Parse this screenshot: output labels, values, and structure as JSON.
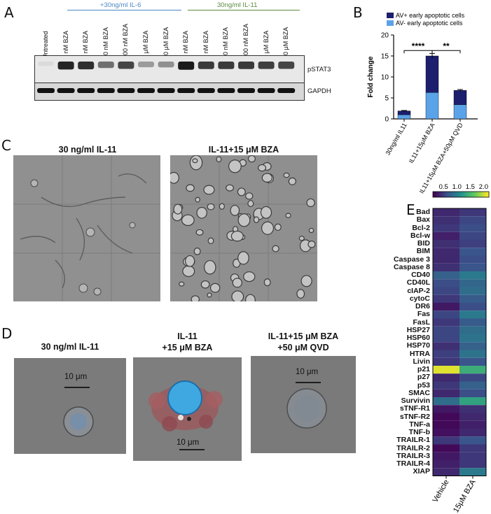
{
  "panel_letters": {
    "a": "A",
    "b": "B",
    "c": "C",
    "d": "D",
    "e": "E"
  },
  "blot": {
    "groups": [
      {
        "label": "+30ng/ml IL-6",
        "color": "#4a86c5"
      },
      {
        "label": "30ng/ml IL-11",
        "color": "#5a8a3c"
      }
    ],
    "lanes": [
      "Untreated",
      "0 nM BZA",
      "3 nM BZA",
      "30 nM BZA",
      "300 nM BZA",
      "3 μM BZA",
      "30 μM BZA",
      "0 nM BZA",
      "3 nM BZA",
      "30 nM BZA",
      "300 nM BZA",
      "3 μM BZA",
      "30 μM BZA"
    ],
    "pstat3_intensity": [
      0.05,
      0.9,
      0.85,
      0.55,
      0.75,
      0.35,
      0.4,
      0.95,
      0.8,
      0.8,
      0.8,
      0.78,
      0.75
    ],
    "bands": [
      "pSTAT3",
      "GAPDH"
    ]
  },
  "chart_data": {
    "type": "bar",
    "stacked": true,
    "categories": [
      "30ng/ml IL11",
      "IL11+15μM BZA",
      "IL11+15μM BZA+50μM QVD"
    ],
    "series": [
      {
        "name": "AV- early apoptotic cells",
        "color": "#5ba3e8",
        "values": [
          1.0,
          6.3,
          3.4
        ]
      },
      {
        "name": "AV+ early apoptotic cells",
        "color": "#1c1f6e",
        "values": [
          0.9,
          8.7,
          3.4
        ]
      }
    ],
    "error": [
      0.1,
      0.6,
      0.2
    ],
    "ylabel": "Fold change",
    "ylim": [
      0,
      20
    ],
    "yticks": [
      "0",
      "5",
      "10",
      "15",
      "20"
    ],
    "significance": [
      "****",
      "**"
    ],
    "legend": "top"
  },
  "panel_c": {
    "titles": [
      "30 ng/ml IL-11",
      "IL-11+15 μM BZA"
    ]
  },
  "panel_d": {
    "titles": [
      [
        "30 ng/ml IL-11",
        ""
      ],
      [
        "IL-11",
        "+15 μM BZA"
      ],
      [
        "IL-11+15 μM BZA",
        "+50 μM QVD"
      ]
    ],
    "scalebar": "10 μm"
  },
  "heatmap": {
    "rows": [
      "Bad",
      "Bax",
      "Bcl-2",
      "Bcl-w",
      "BID",
      "BIM",
      "Caspase 3",
      "Caspase 8",
      "CD40",
      "CD40L",
      "cIAP-2",
      "cytoC",
      "DR6",
      "Fas",
      "FasL",
      "HSP27",
      "HSP60",
      "HSP70",
      "HTRA",
      "Livin",
      "p21",
      "p27",
      "p53",
      "SMAC",
      "Survivin",
      "sTNF-R1",
      "sTNF-R2",
      "TNF-a",
      "TNF-b",
      "TRAILR-1",
      "TRAILR-2",
      "TRAILR-3",
      "TRAILR-4",
      "XIAP"
    ],
    "columns": [
      "Vehicle",
      "15μM BZA"
    ],
    "values": [
      [
        0.35,
        0.45
      ],
      [
        0.4,
        0.55
      ],
      [
        0.45,
        0.6
      ],
      [
        0.3,
        0.55
      ],
      [
        0.4,
        0.5
      ],
      [
        0.35,
        0.65
      ],
      [
        0.35,
        0.6
      ],
      [
        0.4,
        0.65
      ],
      [
        0.75,
        0.95
      ],
      [
        0.6,
        0.8
      ],
      [
        0.55,
        0.85
      ],
      [
        0.45,
        0.7
      ],
      [
        0.25,
        0.6
      ],
      [
        0.55,
        0.95
      ],
      [
        0.45,
        0.7
      ],
      [
        0.55,
        0.85
      ],
      [
        0.55,
        0.9
      ],
      [
        0.4,
        0.75
      ],
      [
        0.5,
        0.9
      ],
      [
        0.45,
        0.65
      ],
      [
        2.1,
        1.4
      ],
      [
        0.35,
        0.55
      ],
      [
        0.45,
        0.75
      ],
      [
        0.35,
        0.6
      ],
      [
        0.85,
        1.3
      ],
      [
        0.25,
        0.4
      ],
      [
        0.15,
        0.35
      ],
      [
        0.15,
        0.3
      ],
      [
        0.2,
        0.35
      ],
      [
        0.45,
        0.65
      ],
      [
        0.15,
        0.45
      ],
      [
        0.25,
        0.45
      ],
      [
        0.3,
        0.45
      ],
      [
        0.35,
        0.95
      ]
    ],
    "scale_ticks": [
      "0.5",
      "1.0",
      "1.5",
      "2.0"
    ],
    "scale_range": [
      0.1,
      2.2
    ]
  }
}
